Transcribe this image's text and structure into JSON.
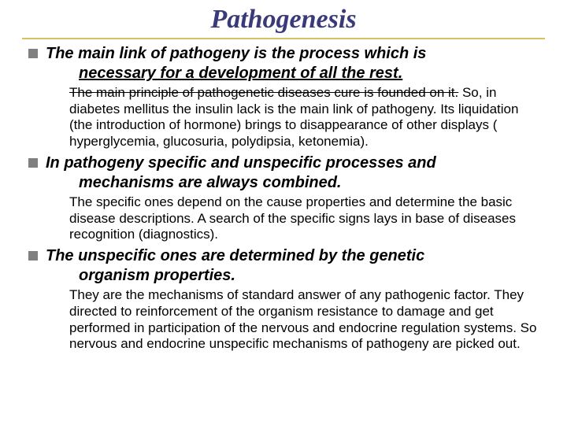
{
  "title": "Pathogenesis",
  "sections": [
    {
      "lead_first": "The main link of pathogeny is the process which is",
      "lead_cont": "necessary for a development of all the rest.",
      "cont_underline": true,
      "body_pre": "The main principle of pathogenetic diseases cure is founded on it.",
      "body_post": " So, in diabetes mellitus the insulin lack is the main link of pathogeny. Its liquidation (the introduction of hormone) brings to disappearance of other displays ( hyperglycemia, glucosuria, polydipsia, ketonemia).",
      "body_strike": true
    },
    {
      "lead_first": "In  pathogeny  specific and unspecific processes and",
      "lead_cont": "mechanisms are always combined.",
      "cont_underline": false,
      "body": "The specific ones depend on the cause properties and determine the basic disease descriptions. A search of the specific signs lays in base of  diseases recognition (diagnostics)."
    },
    {
      "lead_first": "The unspecific ones are determined by the genetic",
      "lead_cont": "organism properties.",
      "cont_underline": false,
      "body": "They are the mechanisms of standard answer of any pathogenic factor. They  directed to reinforcement of the organism resistance to damage and get performed in participation of the nervous and endocrine regulation systems. So nervous and endocrine unspecific mechanisms of pathogeny are picked out."
    }
  ],
  "colors": {
    "title": "#3a3a7a",
    "underline": "#d8c060",
    "bullet": "#808080"
  }
}
